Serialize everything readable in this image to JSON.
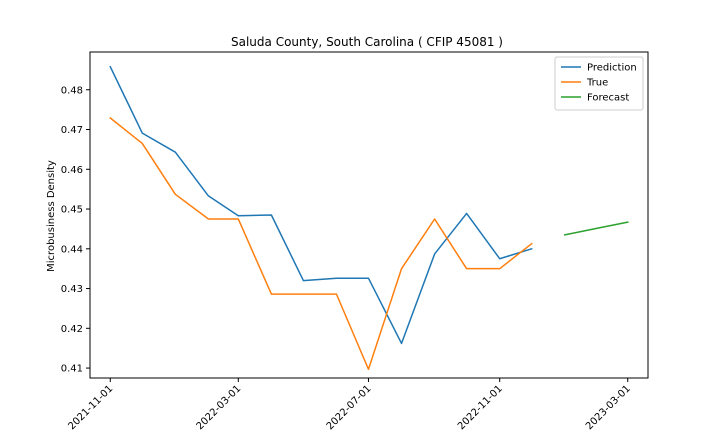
{
  "chart_data": {
    "type": "line",
    "title": "Saluda County, South Carolina ( CFIP 45081 )",
    "xlabel": "",
    "ylabel": "Microbusiness Density",
    "x_ticks": [
      "2021-11-01",
      "2022-03-01",
      "2022-07-01",
      "2022-11-01",
      "2023-03-01"
    ],
    "x_range": [
      "2021-10-13",
      "2023-03-20"
    ],
    "ylim": [
      0.4075,
      0.4895
    ],
    "y_ticks": [
      "0.41",
      "0.42",
      "0.43",
      "0.44",
      "0.45",
      "0.46",
      "0.47",
      "0.48"
    ],
    "grid": false,
    "legend_position": "top-right",
    "series": [
      {
        "name": "Prediction",
        "color": "#1f77b4",
        "x": [
          "2021-11-01",
          "2021-12-01",
          "2022-01-01",
          "2022-02-01",
          "2022-03-01",
          "2022-04-01",
          "2022-05-01",
          "2022-06-01",
          "2022-07-01",
          "2022-08-01",
          "2022-09-01",
          "2022-10-01",
          "2022-11-01",
          "2022-12-01"
        ],
        "y": [
          0.4858,
          0.4691,
          0.4643,
          0.4533,
          0.4483,
          0.4485,
          0.432,
          0.4326,
          0.4326,
          0.4162,
          0.4387,
          0.4489,
          0.4375,
          0.44
        ]
      },
      {
        "name": "True",
        "color": "#ff7f0e",
        "x": [
          "2021-11-01",
          "2021-12-01",
          "2022-01-01",
          "2022-02-01",
          "2022-03-01",
          "2022-04-01",
          "2022-05-01",
          "2022-06-01",
          "2022-07-01",
          "2022-08-01",
          "2022-09-01",
          "2022-10-01",
          "2022-11-01",
          "2022-12-01"
        ],
        "y": [
          0.4729,
          0.4665,
          0.4537,
          0.4475,
          0.4475,
          0.4286,
          0.4286,
          0.4286,
          0.4097,
          0.435,
          0.4475,
          0.435,
          0.435,
          0.4413
        ]
      },
      {
        "name": "Forecast",
        "color": "#2ca02c",
        "x": [
          "2023-01-01",
          "2023-02-01",
          "2023-03-01"
        ],
        "y": [
          0.4435,
          0.4452,
          0.4467
        ]
      }
    ]
  }
}
